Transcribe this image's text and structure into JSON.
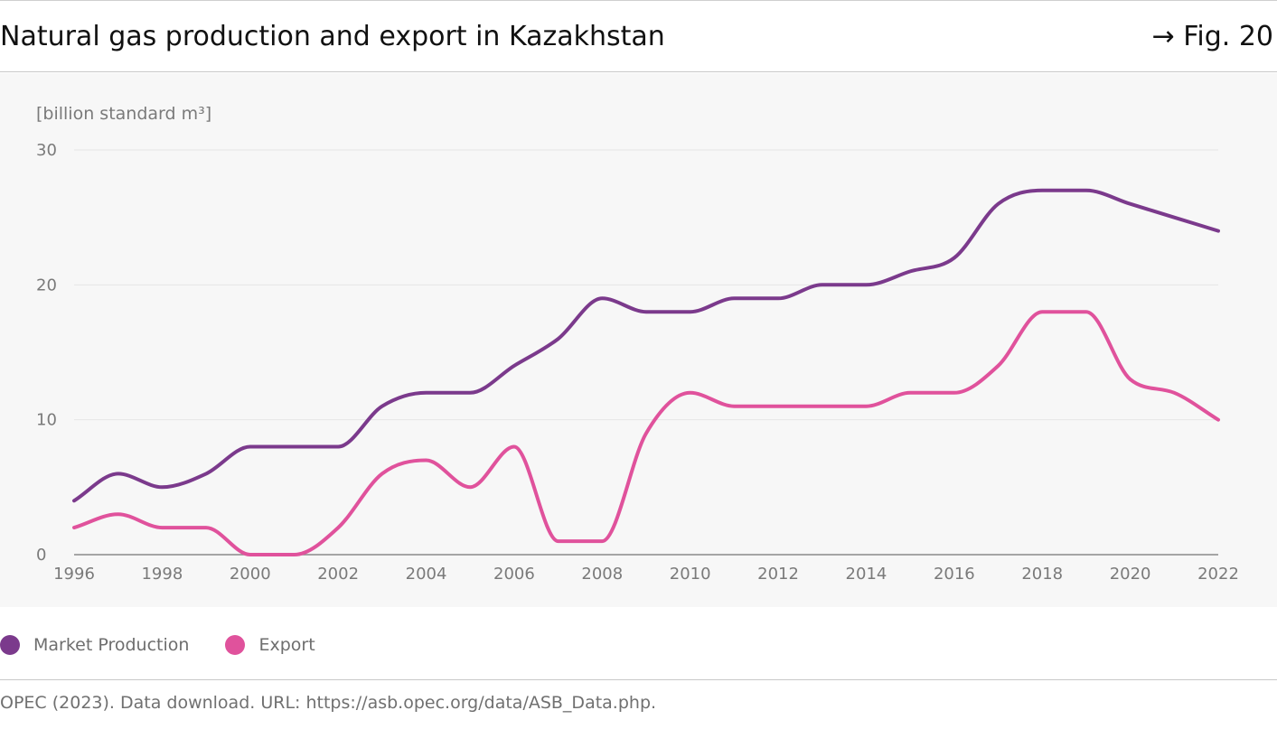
{
  "header": {
    "title": "Natural gas production and export in Kazakhstan",
    "fig_ref": "→ Fig. 20"
  },
  "source": "OPEC (2023). Data download. URL: https://asb.opec.org/data/ASB_Data.php.",
  "chart_data": {
    "type": "line",
    "title": "Natural gas production and export in Kazakhstan",
    "ylabel": "[billion standard m³]",
    "xlabel": "",
    "x": [
      1996,
      1997,
      1998,
      1999,
      2000,
      2001,
      2002,
      2003,
      2004,
      2005,
      2006,
      2007,
      2008,
      2009,
      2010,
      2011,
      2012,
      2013,
      2014,
      2015,
      2016,
      2017,
      2018,
      2019,
      2020,
      2021,
      2022
    ],
    "x_ticks": [
      "1996",
      "1998",
      "2000",
      "2002",
      "2004",
      "2006",
      "2008",
      "2010",
      "2012",
      "2014",
      "2016",
      "2018",
      "2020",
      "2022"
    ],
    "y_ticks": [
      "0",
      "10",
      "20",
      "30"
    ],
    "xlim": [
      1996,
      2022
    ],
    "ylim": [
      0,
      30
    ],
    "grid": true,
    "legend_position": "bottom-left",
    "series": [
      {
        "name": "Market Production",
        "color": "#7b3a8c",
        "values": [
          4,
          6,
          5,
          6,
          8,
          8,
          8,
          11,
          12,
          12,
          14,
          16,
          19,
          18,
          18,
          19,
          19,
          20,
          20,
          21,
          22,
          26,
          27,
          27,
          26,
          25,
          24
        ]
      },
      {
        "name": "Export",
        "color": "#e0529c",
        "values": [
          2,
          3,
          2,
          2,
          0,
          0,
          2,
          6,
          7,
          5,
          8,
          1,
          1,
          9,
          12,
          11,
          11,
          11,
          11,
          12,
          12,
          14,
          18,
          18,
          13,
          12,
          10
        ]
      }
    ]
  }
}
